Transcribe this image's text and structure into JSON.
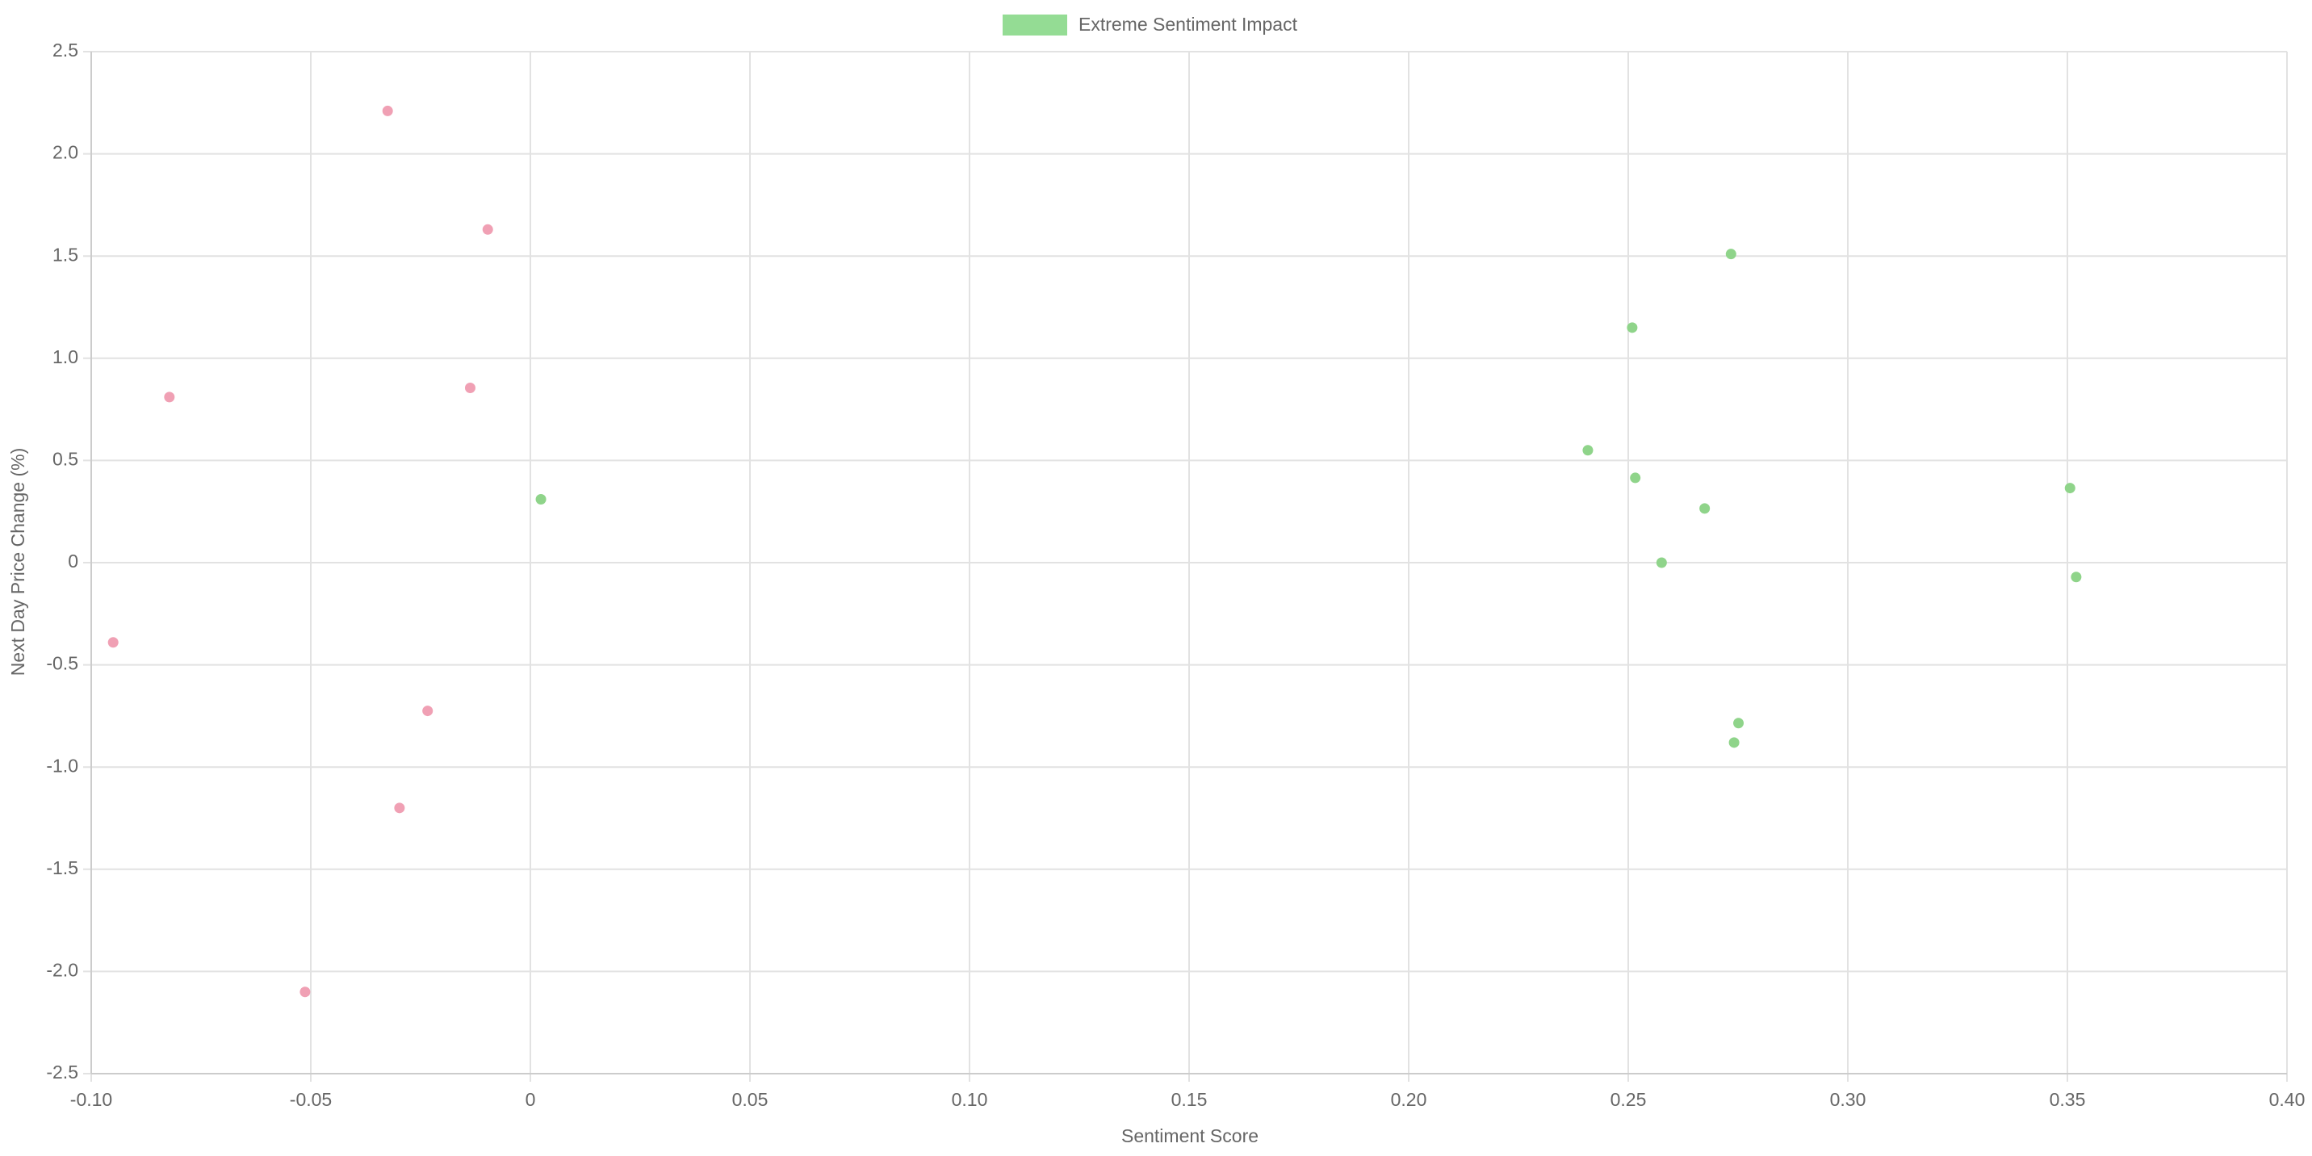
{
  "chart_data": {
    "type": "scatter",
    "xlabel": "Sentiment Score",
    "ylabel": "Next Day Price Change (%)",
    "xlim": [
      -0.1,
      0.4
    ],
    "ylim": [
      -2.5,
      2.5
    ],
    "xticks": [
      {
        "value": -0.1,
        "label": "-0.10"
      },
      -0.05,
      0,
      0.05,
      {
        "value": 0.1,
        "label": "0.10"
      },
      0.15,
      {
        "value": 0.2,
        "label": "0.20"
      },
      0.25,
      {
        "value": 0.3,
        "label": "0.30"
      },
      0.35,
      {
        "value": 0.4,
        "label": "0.40"
      }
    ],
    "yticks": [
      2.5,
      {
        "value": 2,
        "label": "2.0"
      },
      1.5,
      {
        "value": 1,
        "label": "1.0"
      },
      0.5,
      0,
      -0.5,
      {
        "value": -1,
        "label": "-1.0"
      },
      -1.5,
      {
        "value": -2,
        "label": "-2.0"
      },
      -2.5
    ],
    "grid": true,
    "legend": "top",
    "series": [
      {
        "name": "Extreme Sentiment Impact",
        "color": "#94dc94",
        "x": [
          -0.0325,
          -0.0097,
          -0.0822,
          -0.0137,
          0.0024,
          -0.095,
          -0.0234,
          -0.0298,
          -0.0513,
          0.2734,
          0.2509,
          0.2408,
          0.2516,
          0.2674,
          0.2576,
          0.3506,
          0.352,
          0.2751,
          0.2741
        ],
        "values": [
          2.21,
          1.63,
          0.81,
          0.855,
          0.31,
          -0.39,
          -0.725,
          -1.2,
          -2.1,
          1.51,
          1.15,
          0.55,
          0.415,
          0.265,
          0.0,
          0.365,
          -0.07,
          -0.785,
          -0.88
        ],
        "point_colors": [
          "#f0a0b4",
          "#f0a0b4",
          "#f0a0b4",
          "#f0a0b4",
          "#8fd48a",
          "#f0a0b4",
          "#f0a0b4",
          "#f0a0b4",
          "#f0a0b4",
          "#8fd48a",
          "#8fd48a",
          "#8fd48a",
          "#8fd48a",
          "#8fd48a",
          "#8fd48a",
          "#8fd48a",
          "#8fd48a",
          "#8fd48a",
          "#8fd48a"
        ]
      }
    ]
  }
}
